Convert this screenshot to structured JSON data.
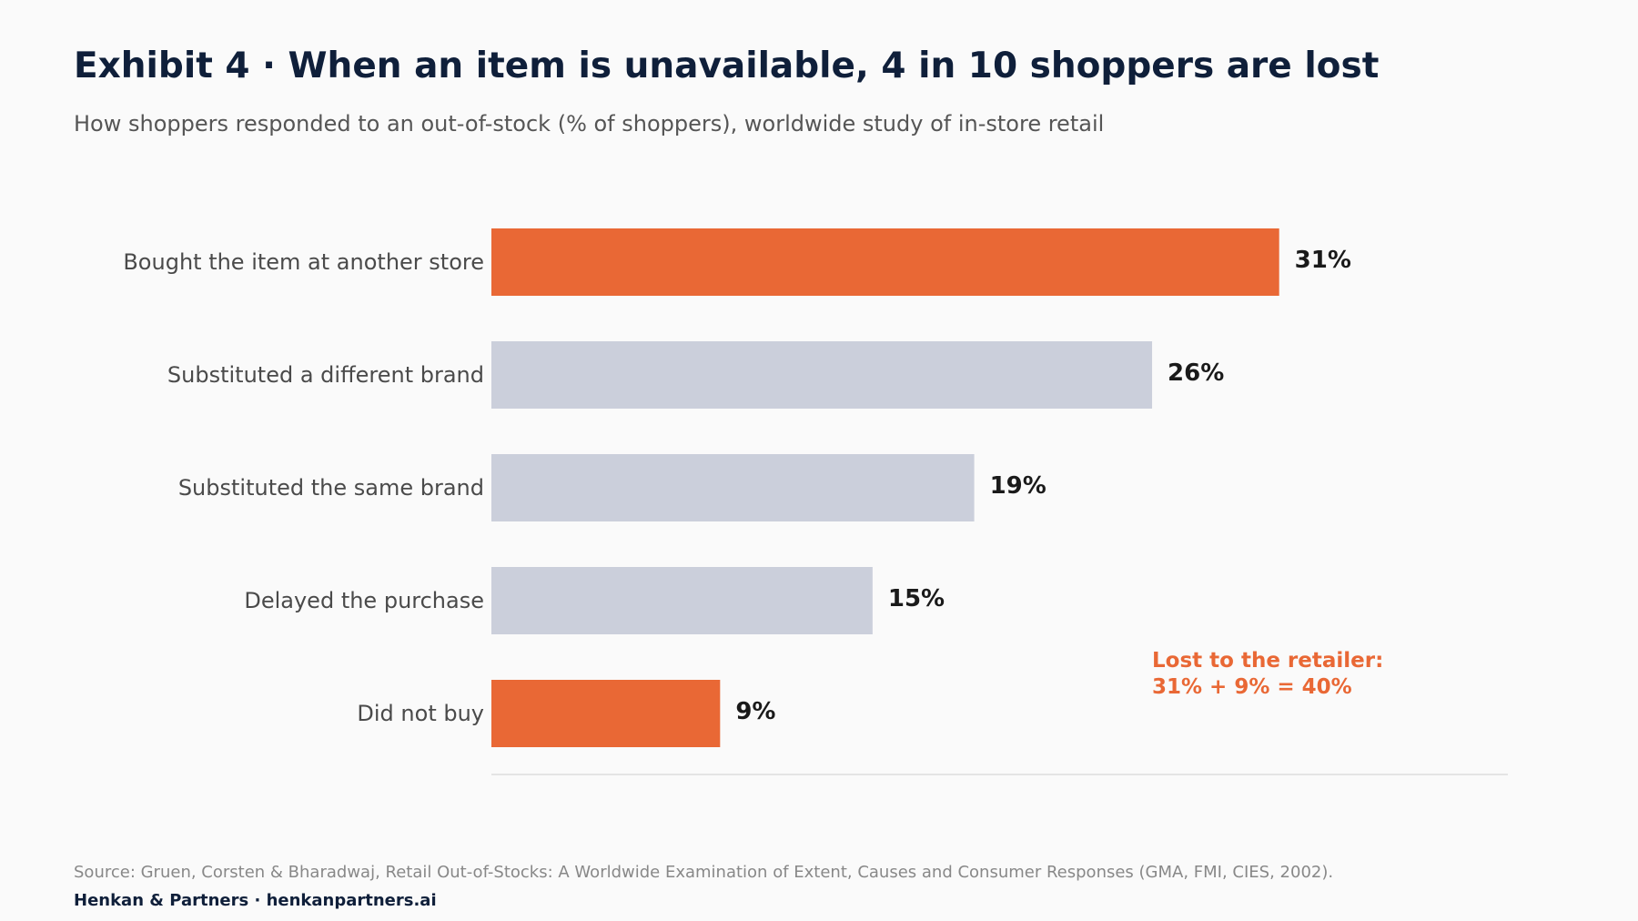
{
  "header": {
    "title": "Exhibit 4 · When an item is unavailable, 4 in 10 shoppers are lost",
    "subtitle": "How shoppers responded to an out-of-stock (% of shoppers), worldwide study of in-store retail"
  },
  "chart_data": {
    "type": "bar",
    "orientation": "horizontal",
    "categories": [
      "Bought the item at another store",
      "Substituted a different brand",
      "Substituted the same brand",
      "Delayed the purchase",
      "Did not buy"
    ],
    "values": [
      31,
      26,
      19,
      15,
      9
    ],
    "value_labels": [
      "31%",
      "26%",
      "19%",
      "15%",
      "9%"
    ],
    "highlighted": [
      true,
      false,
      false,
      false,
      true
    ],
    "xlim": [
      0,
      40
    ],
    "grid": false,
    "annotation": {
      "line1": "Lost to the retailer:",
      "line2": "31% + 9% = 40%"
    },
    "colors": {
      "highlight": "#e96835",
      "base": "#cbcfdb",
      "value_label": "#1a1a1a",
      "category_label": "#4a4a4a",
      "axis": "#dddddd"
    }
  },
  "footer": {
    "source": "Source: Gruen, Corsten & Bharadwaj, Retail Out-of-Stocks: A Worldwide Examination of Extent, Causes and Consumer Responses (GMA, FMI, CIES, 2002).",
    "brand": "Henkan & Partners · henkanpartners.ai"
  }
}
